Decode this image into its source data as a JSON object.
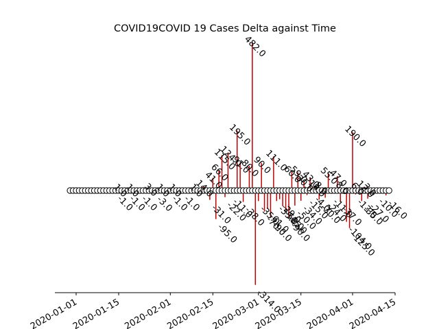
{
  "chart_data": {
    "type": "stem",
    "title": "COVID19COVID 19 Cases Delta against Time",
    "xlabel": "",
    "ylabel": "",
    "x_tick_labels": [
      "2020-01-01",
      "2020-01-15",
      "2020-02-01",
      "2020-02-15",
      "2020-03-01",
      "2020-03-15",
      "2020-04-01",
      "2020-04-15"
    ],
    "x_range": [
      "2019-12-25",
      "2020-04-15"
    ],
    "x_start": "2019-12-30",
    "x_end": "2020-04-13",
    "y_range": [
      -340,
      490
    ],
    "baseline": 0,
    "stem_color": "#c00000",
    "marker_color": "#ffffff",
    "stems": [
      {
        "date": "2020-01-14",
        "value": -1.0
      },
      {
        "date": "2020-01-16",
        "value": 1.0
      },
      {
        "date": "2020-01-18",
        "value": -1.0
      },
      {
        "date": "2020-01-20",
        "value": 1.0
      },
      {
        "date": "2020-01-22",
        "value": -1.0
      },
      {
        "date": "2020-01-26",
        "value": 3.0
      },
      {
        "date": "2020-01-27",
        "value": -3.0
      },
      {
        "date": "2020-01-30",
        "value": 1.0
      },
      {
        "date": "2020-02-01",
        "value": -1.0
      },
      {
        "date": "2020-02-03",
        "value": 1.0
      },
      {
        "date": "2020-02-05",
        "value": -1.0
      },
      {
        "date": "2020-02-10",
        "value": 1.0
      },
      {
        "date": "2020-02-12",
        "value": 14.0
      },
      {
        "date": "2020-02-14",
        "value": -31.0
      },
      {
        "date": "2020-02-15",
        "value": 41.0
      },
      {
        "date": "2020-02-16",
        "value": -95.0
      },
      {
        "date": "2020-02-17",
        "value": 66.0
      },
      {
        "date": "2020-02-18",
        "value": 115.0
      },
      {
        "date": "2020-02-19",
        "value": -22.0
      },
      {
        "date": "2020-02-20",
        "value": 124.0
      },
      {
        "date": "2020-02-21",
        "value": -11.0
      },
      {
        "date": "2020-02-23",
        "value": 195.0
      },
      {
        "date": "2020-02-24",
        "value": 91.0
      },
      {
        "date": "2020-02-25",
        "value": -38.0
      },
      {
        "date": "2020-02-27",
        "value": 80.0
      },
      {
        "date": "2020-02-28",
        "value": 482.0
      },
      {
        "date": "2020-02-29",
        "value": -314.0
      },
      {
        "date": "2020-03-01",
        "value": -35.0
      },
      {
        "date": "2020-03-02",
        "value": 90.0
      },
      {
        "date": "2020-03-03",
        "value": -70.0
      },
      {
        "date": "2020-03-04",
        "value": -61.0
      },
      {
        "date": "2020-03-05",
        "value": -90.0
      },
      {
        "date": "2020-03-06",
        "value": 111.0
      },
      {
        "date": "2020-03-07",
        "value": -35.0
      },
      {
        "date": "2020-03-08",
        "value": -29.0
      },
      {
        "date": "2020-03-09",
        "value": -52.0
      },
      {
        "date": "2020-03-10",
        "value": -65.0
      },
      {
        "date": "2020-03-11",
        "value": -90.0
      },
      {
        "date": "2020-03-12",
        "value": 60.0
      },
      {
        "date": "2020-03-13",
        "value": -50.0
      },
      {
        "date": "2020-03-14",
        "value": 59.0
      },
      {
        "date": "2020-03-15",
        "value": -34.0
      },
      {
        "date": "2020-03-16",
        "value": 30.0
      },
      {
        "date": "2020-03-17",
        "value": -15.0
      },
      {
        "date": "2020-03-18",
        "value": 43.0
      },
      {
        "date": "2020-03-19",
        "value": -4.0
      },
      {
        "date": "2020-03-20",
        "value": 14.0
      },
      {
        "date": "2020-03-21",
        "value": -30.0
      },
      {
        "date": "2020-03-22",
        "value": 8.0
      },
      {
        "date": "2020-03-23",
        "value": -24.0
      },
      {
        "date": "2020-03-24",
        "value": 55.0
      },
      {
        "date": "2020-03-25",
        "value": -11.0
      },
      {
        "date": "2020-03-27",
        "value": 47.0
      },
      {
        "date": "2020-03-28",
        "value": -37.0
      },
      {
        "date": "2020-03-29",
        "value": 8.0
      },
      {
        "date": "2020-03-30",
        "value": -104.0
      },
      {
        "date": "2020-03-31",
        "value": -125.0
      },
      {
        "date": "2020-04-01",
        "value": 190.0
      },
      {
        "date": "2020-04-02",
        "value": -13.0
      },
      {
        "date": "2020-04-03",
        "value": 6.0
      },
      {
        "date": "2020-04-04",
        "value": -35.0
      },
      {
        "date": "2020-04-05",
        "value": 12.0
      },
      {
        "date": "2020-04-06",
        "value": -27.0
      },
      {
        "date": "2020-04-07",
        "value": 3.0
      },
      {
        "date": "2020-04-09",
        "value": -10.0
      },
      {
        "date": "2020-04-12",
        "value": -16.0
      }
    ]
  }
}
